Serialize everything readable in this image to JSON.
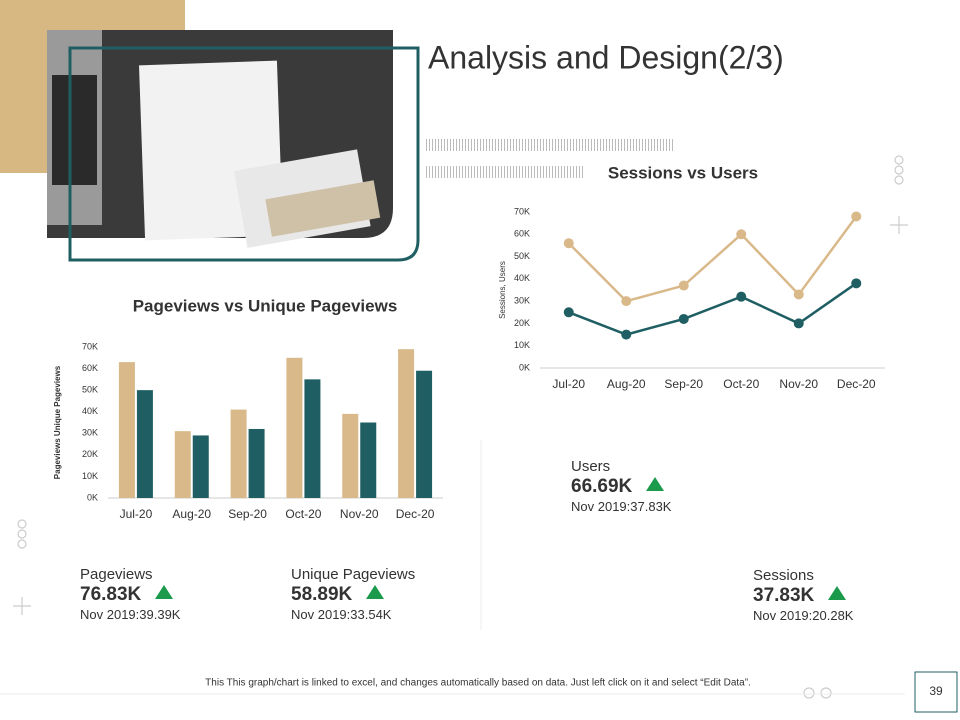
{
  "title": "Analysis and Design(2/3)",
  "chart_data": [
    {
      "type": "bar",
      "title": "Pageviews vs Unique Pageviews",
      "y_label": "Pageviews Unique Pageviews",
      "categories": [
        "Jul-20",
        "Aug-20",
        "Sep-20",
        "Oct-20",
        "Nov-20",
        "Dec-20"
      ],
      "series": [
        {
          "color": "#d9b98a",
          "values": [
            63000,
            31000,
            41000,
            65000,
            39000,
            69000
          ]
        },
        {
          "color": "#1f5f63",
          "values": [
            50000,
            29000,
            32000,
            55000,
            35000,
            59000
          ]
        }
      ],
      "ylim": [
        0,
        70000
      ],
      "yticks": [
        {
          "value": 0,
          "label": "0K"
        },
        {
          "value": 10000,
          "label": "10K"
        },
        {
          "value": 20000,
          "label": "20K"
        },
        {
          "value": 30000,
          "label": "30K"
        },
        {
          "value": 40000,
          "label": "40K"
        },
        {
          "value": 50000,
          "label": "50K"
        },
        {
          "value": 60000,
          "label": "60K"
        },
        {
          "value": 70000,
          "label": "70K"
        }
      ]
    },
    {
      "type": "line",
      "title": "Sessions vs Users",
      "y_label": "Sessions, Users",
      "categories": [
        "Jul-20",
        "Aug-20",
        "Sep-20",
        "Oct-20",
        "Nov-20",
        "Dec-20"
      ],
      "series": [
        {
          "color": "#d9b98a",
          "values": [
            56000,
            30000,
            37000,
            60000,
            33000,
            68000
          ]
        },
        {
          "color": "#1f5f63",
          "values": [
            25000,
            15000,
            22000,
            32000,
            20000,
            38000
          ]
        }
      ],
      "ylim": [
        0,
        70000
      ],
      "yticks": [
        {
          "value": 0,
          "label": "0K"
        },
        {
          "value": 10000,
          "label": "10K"
        },
        {
          "value": 20000,
          "label": "20K"
        },
        {
          "value": 30000,
          "label": "30K"
        },
        {
          "value": 40000,
          "label": "40K"
        },
        {
          "value": 50000,
          "label": "50K"
        },
        {
          "value": 60000,
          "label": "60K"
        },
        {
          "value": 70000,
          "label": "70K"
        }
      ]
    }
  ],
  "kpis": [
    {
      "label": "Users",
      "value": "66.69K",
      "previous": "Nov 2019:37.83K"
    },
    {
      "label": "Pageviews",
      "value": "76.83K",
      "previous": "Nov 2019:39.39K"
    },
    {
      "label": "Unique Pageviews",
      "value": "58.89K",
      "previous": "Nov 2019:33.54K"
    },
    {
      "label": "Sessions",
      "value": "37.83K",
      "previous": "Nov 2019:20.28K"
    }
  ],
  "footer_note": "This This graph/chart is linked to excel, and changes automatically based on data. Just left click on it and select “Edit Data”.",
  "page_number": "39"
}
